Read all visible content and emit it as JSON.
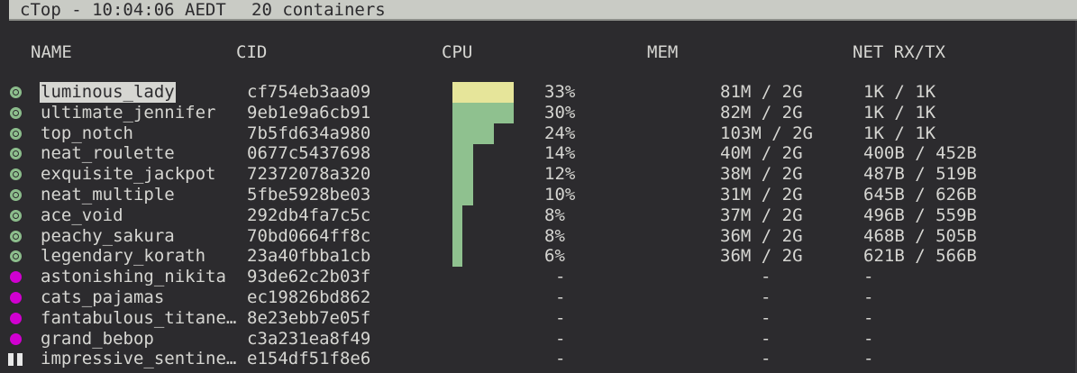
{
  "title": {
    "app": "cTop - 10:04:06 AEDT",
    "count": "20 containers"
  },
  "columns": [
    "NAME",
    "CID",
    "CPU",
    "MEM",
    "NET RX/TX"
  ],
  "colors": {
    "running": "#8fc18f",
    "stopped": "#d000d0",
    "paused": "#e8e8e8",
    "cpu_bar": "#8fc18f",
    "cpu_bar_selected": "#e6e59a",
    "title_bg": "#c9cbc5",
    "background": "#2c2b2e"
  },
  "selected": "luminous_lady",
  "containers": [
    {
      "status": "running",
      "name": "luminous_lady",
      "cid": "cf754eb3aa09",
      "cpu": "33%",
      "cpu_value": 33,
      "mem": "81M / 2G",
      "net": "1K / 1K"
    },
    {
      "status": "running",
      "name": "ultimate_jennifer",
      "cid": "9eb1e9a6cb91",
      "cpu": "30%",
      "cpu_value": 30,
      "mem": "82M / 2G",
      "net": "1K / 1K"
    },
    {
      "status": "running",
      "name": "top_notch",
      "cid": "7b5fd634a980",
      "cpu": "24%",
      "cpu_value": 24,
      "mem": "103M / 2G",
      "net": "1K / 1K"
    },
    {
      "status": "running",
      "name": "neat_roulette",
      "cid": "0677c5437698",
      "cpu": "14%",
      "cpu_value": 14,
      "mem": "40M / 2G",
      "net": "400B / 452B"
    },
    {
      "status": "running",
      "name": "exquisite_jackpot",
      "cid": "72372078a320",
      "cpu": "12%",
      "cpu_value": 12,
      "mem": "38M / 2G",
      "net": "487B / 519B"
    },
    {
      "status": "running",
      "name": "neat_multiple",
      "cid": "5fbe5928be03",
      "cpu": "10%",
      "cpu_value": 10,
      "mem": "31M / 2G",
      "net": "645B / 626B"
    },
    {
      "status": "running",
      "name": "ace_void",
      "cid": "292db4fa7c5c",
      "cpu": "8%",
      "cpu_value": 8,
      "mem": "37M / 2G",
      "net": "496B / 559B"
    },
    {
      "status": "running",
      "name": "peachy_sakura",
      "cid": "70bd0664ff8c",
      "cpu": "8%",
      "cpu_value": 8,
      "mem": "36M / 2G",
      "net": "468B / 505B"
    },
    {
      "status": "running",
      "name": "legendary_korath",
      "cid": "23a40fbba1cb",
      "cpu": "6%",
      "cpu_value": 6,
      "mem": "36M / 2G",
      "net": "621B / 566B"
    },
    {
      "status": "stopped",
      "name": "astonishing_nikita",
      "cid": "93de62c2b03f",
      "cpu": "-",
      "mem": "-",
      "net": "-"
    },
    {
      "status": "stopped",
      "name": "cats_pajamas",
      "cid": "ec19826bd862",
      "cpu": "-",
      "mem": "-",
      "net": "-"
    },
    {
      "status": "stopped",
      "name": "fantabulous_titane…",
      "cid": "8e23ebb7e05f",
      "cpu": "-",
      "mem": "-",
      "net": "-"
    },
    {
      "status": "stopped",
      "name": "grand_bebop",
      "cid": "c3a231ea8f49",
      "cpu": "-",
      "mem": "-",
      "net": "-"
    },
    {
      "status": "paused",
      "name": "impressive_sentine…",
      "cid": "e154df51f8e6",
      "cpu": "-",
      "mem": "-",
      "net": "-"
    }
  ]
}
